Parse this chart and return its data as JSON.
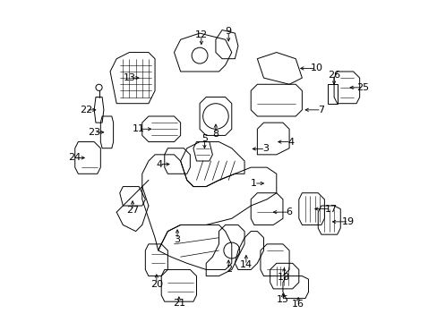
{
  "title": "",
  "background_color": "#ffffff",
  "fig_width": 4.89,
  "fig_height": 3.6,
  "dpi": 100,
  "font_size": 8,
  "line_color": "#000000",
  "text_color": "#000000"
}
